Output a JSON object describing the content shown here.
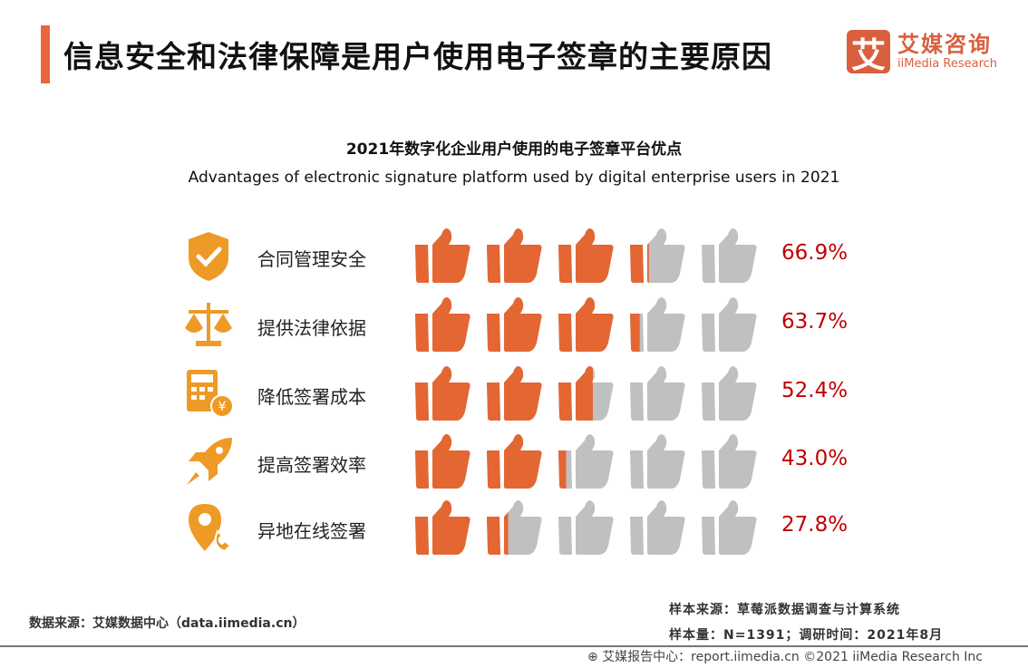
{
  "header": {
    "title": "信息安全和法律保障是用户使用电子签章的主要原因",
    "logo_mark": "艾",
    "logo_cn": "艾媒咨询",
    "logo_en": "iiMedia Research"
  },
  "chart_data": {
    "type": "pictograph",
    "title": "2021年数字化企业用户使用的电子签章平台优点",
    "subtitle": "Advantages of electronic signature platform used by digital enterprise users in 2021",
    "unit": "%",
    "categories": [
      "合同管理安全",
      "提供法律依据",
      "降低签署成本",
      "提高签署效率",
      "异地在线签署"
    ],
    "icons": [
      "shield-check-icon",
      "scale-icon",
      "calculator-yen-icon",
      "rocket-icon",
      "location-phone-icon"
    ],
    "values": [
      66.9,
      63.7,
      52.4,
      43.0,
      27.8
    ],
    "labels": [
      "66.9%",
      "63.7%",
      "52.4%",
      "43.0%",
      "27.8%"
    ],
    "symbols_per_row": 5,
    "colors": {
      "filled": "#e36633",
      "empty": "#c0c0c0",
      "value": "#c00000",
      "icon": "#ee9a26"
    }
  },
  "footer": {
    "source": "数据来源：艾媒数据中心（data.iimedia.cn）",
    "sample_source": "样本来源：草莓派数据调查与计算系统",
    "sample_size": "样本量：N=1391；调研时间：2021年8月",
    "credit": "艾媒报告中心：report.iimedia.cn   ©2021  iiMedia Research  Inc"
  }
}
